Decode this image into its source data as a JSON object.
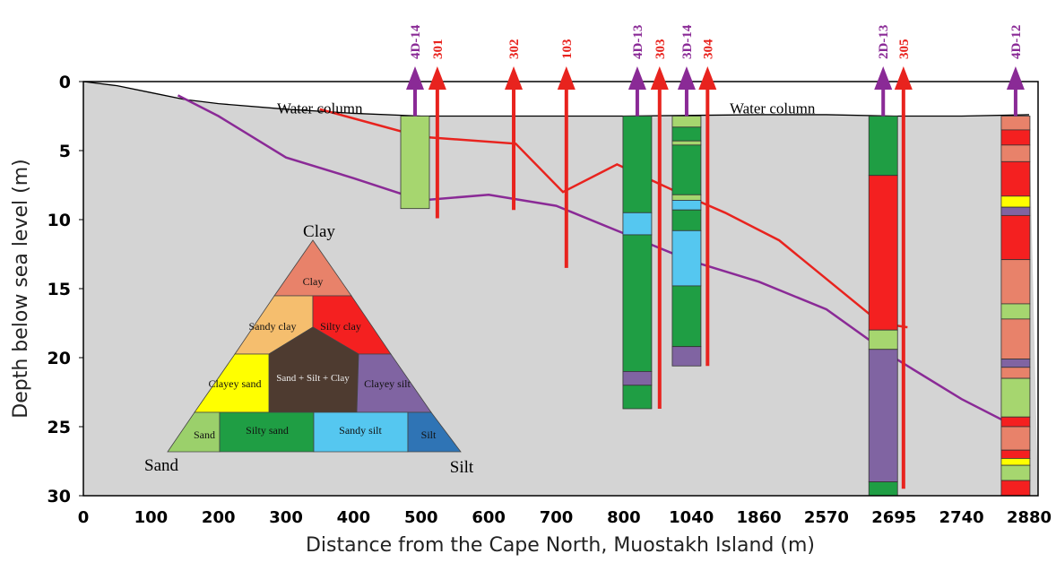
{
  "chart_data": {
    "type": "section",
    "x_label": "Distance from the Cape North, Muostakh Island (m)",
    "y_label": "Depth below sea level (m)",
    "categories": [
      "0",
      "100",
      "200",
      "300",
      "400",
      "500",
      "600",
      "700",
      "800",
      "1040",
      "1860",
      "2570",
      "2695",
      "2740",
      "2880"
    ],
    "ylim": [
      0,
      30
    ],
    "yticks": [
      0,
      5,
      10,
      15,
      20,
      25,
      30
    ],
    "y_inverted": true,
    "annotations": [
      {
        "text": "Water column",
        "x": 3.5,
        "y": 1
      },
      {
        "text": "Water column",
        "x": 10.2,
        "y": 1
      }
    ],
    "lines": [
      {
        "color": "#000000",
        "x": [
          0,
          0.5,
          1,
          1.5,
          2,
          3,
          4,
          5,
          6,
          8,
          10,
          11,
          12,
          13,
          14
        ],
        "values": [
          0,
          0.3,
          0.8,
          1.3,
          1.6,
          2,
          2.3,
          2.5,
          2.5,
          2.5,
          2.4,
          2.4,
          2.5,
          2.5,
          2.4
        ]
      },
      {
        "color": "#e8231e",
        "x": [
          3.5,
          5,
          6.4,
          7.1,
          7.9,
          8.7,
          9.5,
          10.3,
          11.8,
          12.2
        ],
        "values": [
          2,
          4,
          4.5,
          8,
          6,
          7.8,
          9.5,
          11.5,
          17.5,
          17.8
        ]
      },
      {
        "color": "#8a2a96",
        "x": [
          1.4,
          2,
          3,
          4,
          5,
          6,
          7,
          8,
          9,
          10,
          11,
          12,
          13,
          13.8,
          14
        ],
        "values": [
          1,
          2.5,
          5.5,
          7,
          8.6,
          8.2,
          9,
          11,
          13,
          14.5,
          16.5,
          20,
          23,
          25,
          26
        ]
      }
    ],
    "boreholes": [
      {
        "name": "4D-14",
        "color": "#8a2a96",
        "x": 4.91,
        "depth": 2.5,
        "layers": [
          {
            "top": 2.5,
            "bottom": 9.2,
            "color": "#a6d66f"
          }
        ]
      },
      {
        "name": "301",
        "color": "#e8231e",
        "x": 5.24,
        "depth": 9.9
      },
      {
        "name": "302",
        "color": "#e8231e",
        "x": 6.37,
        "depth": 9.3
      },
      {
        "name": "103",
        "color": "#e8231e",
        "x": 7.15,
        "depth": 13.5
      },
      {
        "name": "4D-13",
        "color": "#8a2a96",
        "x": 8.2,
        "depth": 2.5,
        "layers": [
          {
            "top": 2.5,
            "bottom": 9.5,
            "color": "#1f9e44"
          },
          {
            "top": 9.5,
            "bottom": 11.1,
            "color": "#55c7f0"
          },
          {
            "top": 11.1,
            "bottom": 21,
            "color": "#1f9e44"
          },
          {
            "top": 21,
            "bottom": 22,
            "color": "#8064a2"
          },
          {
            "top": 22,
            "bottom": 23.7,
            "color": "#1f9e44"
          }
        ]
      },
      {
        "name": "303",
        "color": "#e8231e",
        "x": 8.53,
        "depth": 23.7
      },
      {
        "name": "3D-14",
        "color": "#8a2a96",
        "x": 8.93,
        "depth": 2.5,
        "layers": [
          {
            "top": 2.5,
            "bottom": 3.3,
            "color": "#a6d66f"
          },
          {
            "top": 3.3,
            "bottom": 4.3,
            "color": "#1f9e44"
          },
          {
            "top": 4.3,
            "bottom": 4.6,
            "color": "#a6d66f"
          },
          {
            "top": 4.6,
            "bottom": 8.2,
            "color": "#1f9e44"
          },
          {
            "top": 8.2,
            "bottom": 8.6,
            "color": "#a6d66f"
          },
          {
            "top": 8.6,
            "bottom": 9.3,
            "color": "#55c7f0"
          },
          {
            "top": 9.3,
            "bottom": 10.8,
            "color": "#1f9e44"
          },
          {
            "top": 10.8,
            "bottom": 14.8,
            "color": "#55c7f0"
          },
          {
            "top": 14.8,
            "bottom": 19.2,
            "color": "#1f9e44"
          },
          {
            "top": 19.2,
            "bottom": 20.6,
            "color": "#8064a2"
          }
        ]
      },
      {
        "name": "304",
        "color": "#e8231e",
        "x": 9.24,
        "depth": 20.6
      },
      {
        "name": "2D-13",
        "color": "#8a2a96",
        "x": 11.84,
        "depth": 2.5,
        "layers": [
          {
            "top": 2.5,
            "bottom": 6.8,
            "color": "#1f9e44"
          },
          {
            "top": 6.8,
            "bottom": 18,
            "color": "#f42020"
          },
          {
            "top": 18,
            "bottom": 19.4,
            "color": "#a6d66f"
          },
          {
            "top": 19.4,
            "bottom": 29,
            "color": "#8064a2"
          },
          {
            "top": 29,
            "bottom": 30,
            "color": "#1f9e44"
          }
        ]
      },
      {
        "name": "305",
        "color": "#e8231e",
        "x": 12.14,
        "depth": 29.5
      },
      {
        "name": "4D-12",
        "color": "#8a2a96",
        "x": 13.8,
        "depth": 2.5,
        "layers": [
          {
            "top": 2.5,
            "bottom": 3.5,
            "color": "#e8826a"
          },
          {
            "top": 3.5,
            "bottom": 4.6,
            "color": "#f42020"
          },
          {
            "top": 4.6,
            "bottom": 5.8,
            "color": "#e8826a"
          },
          {
            "top": 5.8,
            "bottom": 8.3,
            "color": "#f42020"
          },
          {
            "top": 8.3,
            "bottom": 9.1,
            "color": "#ffff00"
          },
          {
            "top": 9.1,
            "bottom": 9.7,
            "color": "#8064a2"
          },
          {
            "top": 9.7,
            "bottom": 12.9,
            "color": "#f42020"
          },
          {
            "top": 12.9,
            "bottom": 16.1,
            "color": "#e8826a"
          },
          {
            "top": 16.1,
            "bottom": 17.2,
            "color": "#a6d66f"
          },
          {
            "top": 17.2,
            "bottom": 20.1,
            "color": "#e8826a"
          },
          {
            "top": 20.1,
            "bottom": 20.7,
            "color": "#8064a2"
          },
          {
            "top": 20.7,
            "bottom": 21.5,
            "color": "#e8826a"
          },
          {
            "top": 21.5,
            "bottom": 24.3,
            "color": "#a6d66f"
          },
          {
            "top": 24.3,
            "bottom": 25,
            "color": "#f42020"
          },
          {
            "top": 25,
            "bottom": 26.7,
            "color": "#e8826a"
          },
          {
            "top": 26.7,
            "bottom": 27.3,
            "color": "#f42020"
          },
          {
            "top": 27.3,
            "bottom": 27.8,
            "color": "#ffff00"
          },
          {
            "top": 27.8,
            "bottom": 28.9,
            "color": "#a6d66f"
          },
          {
            "top": 28.9,
            "bottom": 30,
            "color": "#f42020"
          }
        ]
      }
    ],
    "legend": {
      "corners": [
        "Clay",
        "Sand",
        "Silt"
      ],
      "classes": [
        {
          "name": "Clay",
          "color": "#e8826a"
        },
        {
          "name": "Sandy clay",
          "color": "#f5be6e"
        },
        {
          "name": "Silty clay",
          "color": "#f42020"
        },
        {
          "name": "Sand + Silt + Clay",
          "color": "#4e3b30"
        },
        {
          "name": "Clayey sand",
          "color": "#ffff00"
        },
        {
          "name": "Clayey silt",
          "color": "#8064a2"
        },
        {
          "name": "Sand",
          "color": "#9bd06b"
        },
        {
          "name": "Silty sand",
          "color": "#1f9e44"
        },
        {
          "name": "Sandy silt",
          "color": "#55c7f0"
        },
        {
          "name": "Silt",
          "color": "#2f74b5"
        }
      ]
    }
  }
}
